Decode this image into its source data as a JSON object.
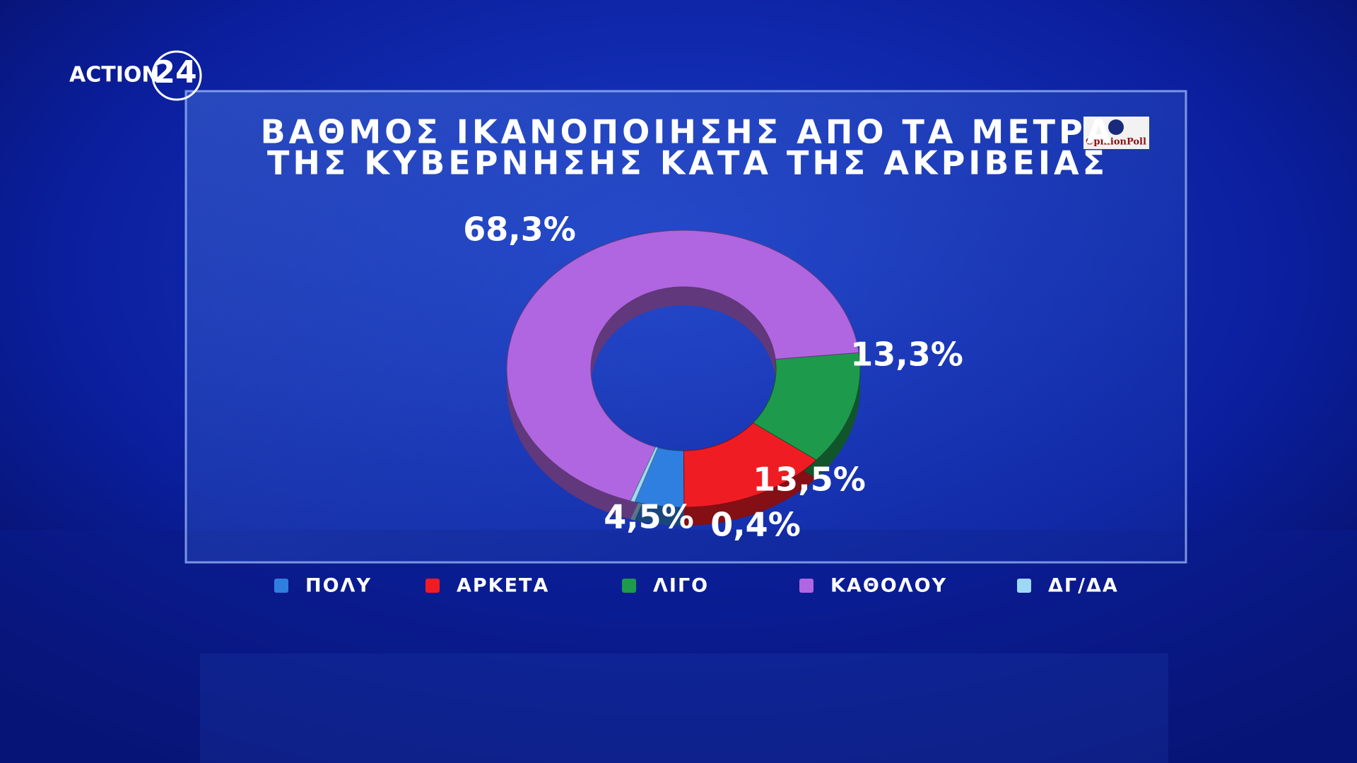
{
  "channel_logo": {
    "name": "ACTION",
    "number": "24"
  },
  "source_logo": "OpinionPoll",
  "chart_data": {
    "type": "donut",
    "title": [
      "ΒΑΘΜΟΣ ΙΚΑΝΟΠΟΙΗΣΗΣ ΑΠΟ ΤΑ ΜΕΤΡΑ",
      "ΤΗΣ ΚΥΒΕΡΝΗΣΗΣ ΚΑΤΑ ΤΗΣ ΑΚΡΙΒΕΙΑΣ"
    ],
    "categories": [
      "ΠΟΛΥ",
      "ΑΡΚΕΤΑ",
      "ΛΙΓΟ",
      "ΚΑΘΟΛΟΥ",
      "ΔΓ/ΔΑ"
    ],
    "values": [
      4.5,
      13.5,
      13.3,
      68.3,
      0.4
    ],
    "value_labels": [
      "4,5%",
      "13,5%",
      "13,3%",
      "68,3%",
      "0,4%"
    ],
    "colors": [
      "#2f7fe0",
      "#f01c24",
      "#1e9a4c",
      "#b066e0",
      "#9fd8f5"
    ],
    "legend": "bottom"
  }
}
